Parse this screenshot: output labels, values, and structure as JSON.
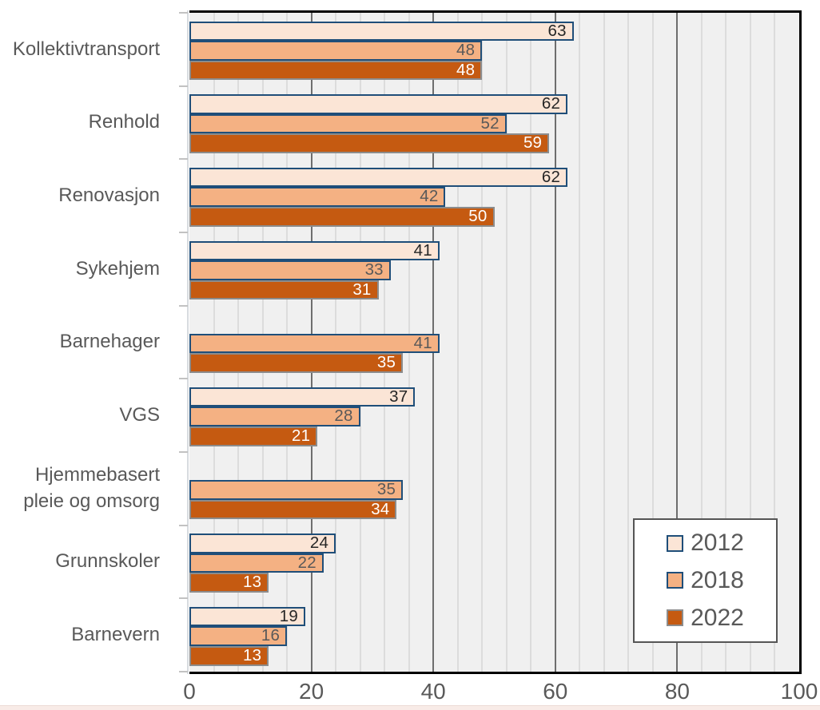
{
  "chart_data": {
    "type": "bar",
    "orientation": "horizontal",
    "title": "",
    "xlabel": "",
    "ylabel": "",
    "categories": [
      "Kollektivtransport",
      "Renhold",
      "Renovasjon",
      "Sykehjem",
      "Barnehager",
      "VGS",
      "Hjemmebasert pleie og omsorg",
      "Grunnskoler",
      "Barnevern"
    ],
    "series": [
      {
        "name": "2012",
        "fill_color": "#FBE5D6",
        "border_color": "#1F4E79",
        "label_color": "#262626",
        "values": [
          63,
          62,
          62,
          41,
          null,
          37,
          null,
          24,
          19
        ]
      },
      {
        "name": "2018",
        "fill_color": "#F4B183",
        "border_color": "#1F4E79",
        "label_color": "#595959",
        "values": [
          48,
          52,
          42,
          33,
          41,
          28,
          35,
          22,
          16
        ]
      },
      {
        "name": "2022",
        "fill_color": "#C55A11",
        "border_color": "#8C8C8C",
        "label_color": "#FFFFFF",
        "values": [
          48,
          59,
          50,
          31,
          35,
          21,
          34,
          13,
          13
        ]
      }
    ],
    "xlim": [
      0,
      100
    ],
    "xticks": [
      0,
      20,
      40,
      60,
      80,
      100
    ],
    "major_unit": 20,
    "minor_unit": 4,
    "grid": "on",
    "data_labels": "inside-end",
    "legend_position": "inside-bottom-right",
    "legend_entries": [
      "2012",
      "2018",
      "2022"
    ]
  },
  "colors": {
    "plot_background": "#F0F0F0",
    "minor_gridline": "#DCDCDC",
    "major_gridline": "#6E6E6E",
    "plot_border": "#000000",
    "category_axis_line": "#D7DBDF",
    "axis_text": "#595959",
    "legend_border": "#555555",
    "legend_text": "#595959",
    "bottom_strip": "#F8EBE7"
  }
}
